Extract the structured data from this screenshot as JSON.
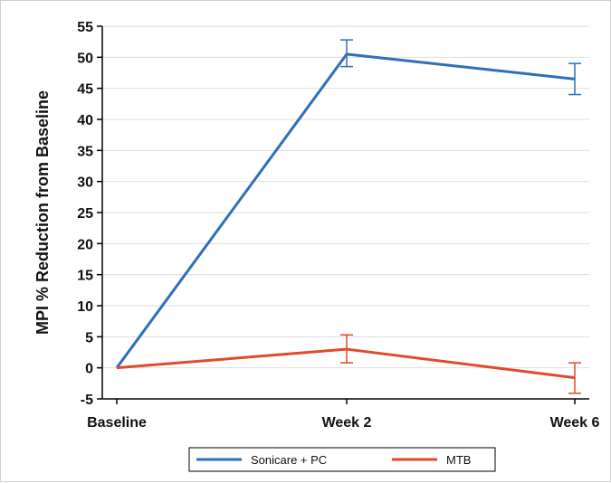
{
  "chart_data": {
    "type": "line",
    "title": "",
    "xlabel": "",
    "ylabel": "MPI % Reduction from Baseline",
    "categories": [
      "Baseline",
      "Week 2",
      "Week 6"
    ],
    "ylim": [
      -5,
      55
    ],
    "yticks": [
      -5,
      0,
      5,
      10,
      15,
      20,
      25,
      30,
      35,
      40,
      45,
      50,
      55
    ],
    "grid": true,
    "legend_position": "bottom",
    "series": [
      {
        "name": "Sonicare + PC",
        "color": "#2e6fb8",
        "values": [
          0,
          50.5,
          46.5
        ],
        "error_low": [
          null,
          48.5,
          44.0
        ],
        "error_high": [
          null,
          52.8,
          49.0
        ]
      },
      {
        "name": "MTB",
        "color": "#e14a2b",
        "values": [
          0,
          3.0,
          -1.6
        ],
        "error_low": [
          null,
          0.8,
          -4.1
        ],
        "error_high": [
          null,
          5.3,
          0.8
        ]
      }
    ]
  }
}
